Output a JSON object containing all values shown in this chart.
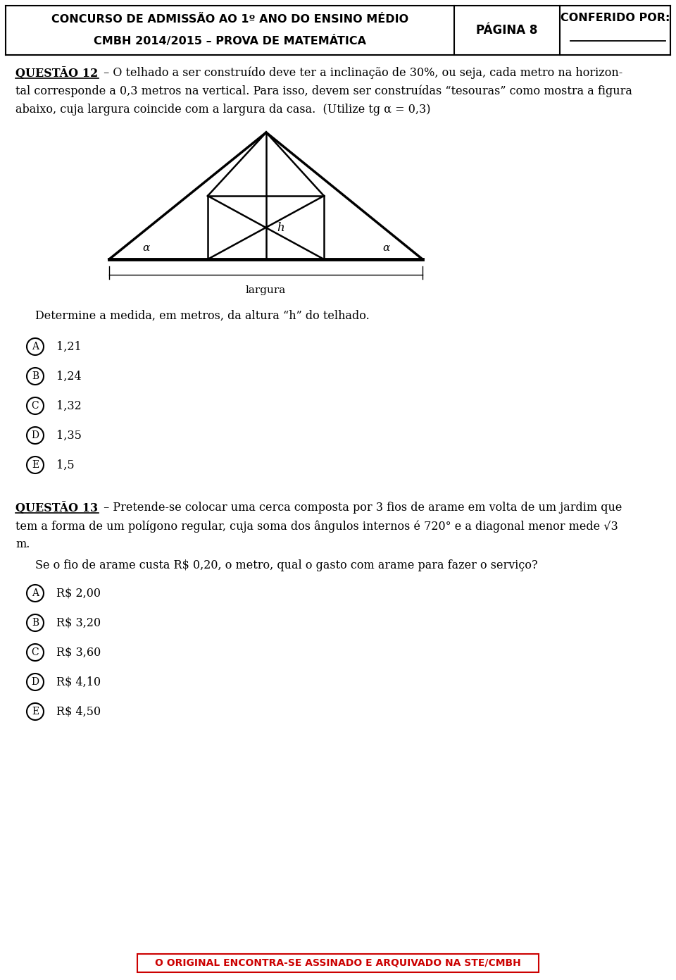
{
  "header_line1": "CONCURSO DE ADMISSÃO AO 1º ANO DO ENSINO MÉDIO",
  "header_line2": "CMBH 2014/2015 – PROVA DE MATEMÁTICA",
  "header_center": "PÁGINA 8",
  "header_right": "CONFERIDO POR:",
  "q12_bold": "QUESTÃO 12",
  "q12_line1": " – O telhado a ser construído deve ter a inclinação de 30%, ou seja, cada metro na horizon-",
  "q12_line2": "tal corresponde a 0,3 metros na vertical. Para isso, devem ser construídas “tesouras” como mostra a figura",
  "q12_line3": "abaixo, cuja largura coincide com a largura da casa.  (Utilize tg α = 0,3)",
  "fig_h": "h",
  "fig_alpha": "α",
  "fig_largura": "largura",
  "q12_question": "Determine a medida, em metros, da altura “h” do telhado.",
  "q12_options": [
    {
      "letter": "A",
      "value": "1,21"
    },
    {
      "letter": "B",
      "value": "1,24"
    },
    {
      "letter": "C",
      "value": "1,32"
    },
    {
      "letter": "D",
      "value": "1,35"
    },
    {
      "letter": "E",
      "value": "1,5"
    }
  ],
  "q13_bold": "QUESTÃO 13",
  "q13_line1": " – Pretende-se colocar uma cerca composta por 3 fios de arame em volta de um jardim que",
  "q13_line2": "tem a forma de um polígono regular, cuja soma dos ângulos internos é 720° e a diagonal menor mede √3",
  "q13_line2b": "3",
  "q13_line3": "m.",
  "q13_question": "Se o fio de arame custa R$ 0,20, o metro, qual o gasto com arame para fazer o serviço?",
  "q13_options": [
    {
      "letter": "A",
      "value": "R$ 2,00"
    },
    {
      "letter": "B",
      "value": "R$ 3,20"
    },
    {
      "letter": "C",
      "value": "R$ 3,60"
    },
    {
      "letter": "D",
      "value": "R$ 4,10"
    },
    {
      "letter": "E",
      "value": "R$ 4,50"
    }
  ],
  "footer_text": "O ORIGINAL ENCONTRA-SE ASSINADO E ARQUIVADO NA STE/CMBH",
  "bg_color": "#ffffff",
  "footer_text_color": "#cc0000",
  "footer_border_color": "#cc0000"
}
